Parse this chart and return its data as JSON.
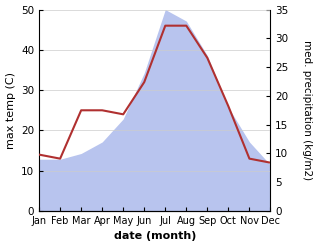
{
  "months": [
    "Jan",
    "Feb",
    "Mar",
    "Apr",
    "May",
    "Jun",
    "Jul",
    "Aug",
    "Sep",
    "Oct",
    "Nov",
    "Dec"
  ],
  "temperature": [
    14,
    13,
    25,
    25,
    24,
    32,
    46,
    46,
    38,
    26,
    13,
    12
  ],
  "precipitation": [
    9,
    9,
    10,
    12,
    16,
    24,
    35,
    33,
    27,
    18,
    12,
    8
  ],
  "temp_color": "#b03030",
  "precip_fill_color": "#b8c4ee",
  "ylabel_left": "max temp (C)",
  "ylabel_right": "med. precipitation (kg/m2)",
  "xlabel": "date (month)",
  "ylim_left": [
    0,
    50
  ],
  "ylim_right": [
    0,
    35
  ],
  "yticks_left": [
    0,
    10,
    20,
    30,
    40,
    50
  ],
  "yticks_right": [
    0,
    5,
    10,
    15,
    20,
    25,
    30,
    35
  ],
  "bg_color": "#ffffff",
  "label_fontsize": 8,
  "tick_fontsize": 7.5
}
